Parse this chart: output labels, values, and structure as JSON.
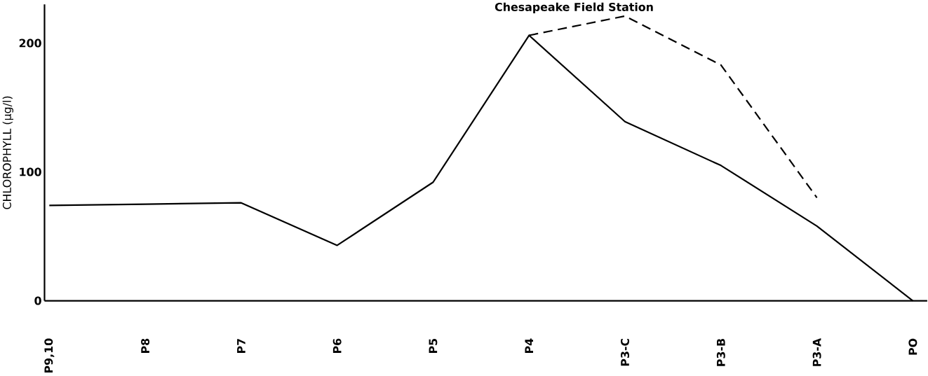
{
  "chart_data": {
    "type": "line",
    "title": "Chesapeake Field Station",
    "ylabel": "CHLOROPHYLL   (μg/l)",
    "categories": [
      "P9,10",
      "P8",
      "P7",
      "P6",
      "P5",
      "P4",
      "P3-C",
      "P3-B",
      "P3-A",
      "PO"
    ],
    "series": [
      {
        "color": "#000000",
        "line_style": "solid",
        "values": [
          74,
          75,
          76,
          43,
          92,
          206,
          139,
          105,
          58,
          0
        ]
      },
      {
        "color": "#000000",
        "line_style": "dashed",
        "values": [
          null,
          null,
          null,
          null,
          null,
          206,
          221,
          183,
          80,
          null
        ]
      }
    ],
    "ylim": [
      0,
      230
    ],
    "yticks": [
      0,
      100,
      200
    ],
    "grid": false,
    "marker": "none"
  }
}
